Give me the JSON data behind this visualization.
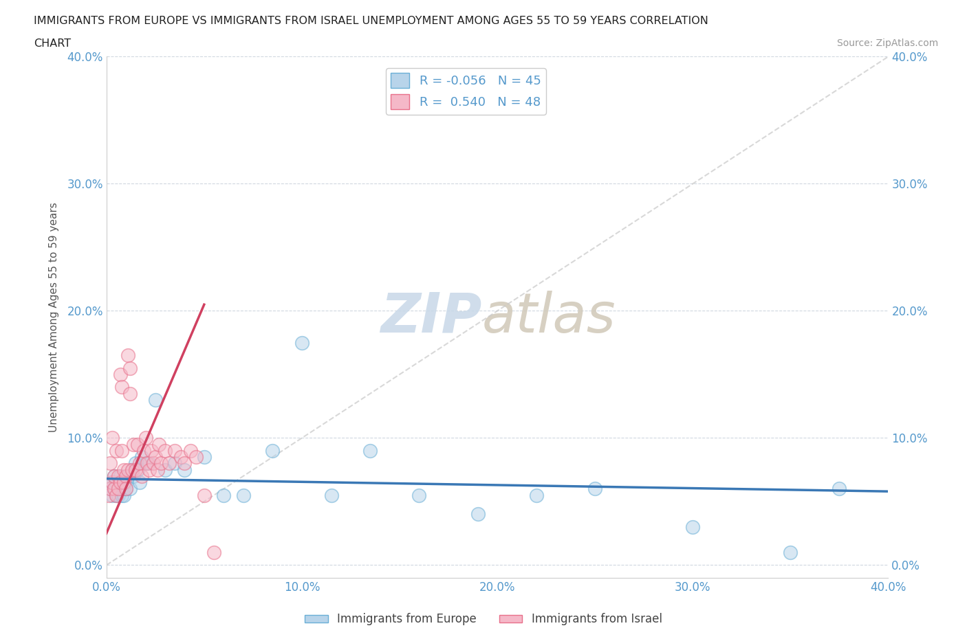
{
  "title_line1": "IMMIGRANTS FROM EUROPE VS IMMIGRANTS FROM ISRAEL UNEMPLOYMENT AMONG AGES 55 TO 59 YEARS CORRELATION",
  "title_line2": "CHART",
  "source": "Source: ZipAtlas.com",
  "ylabel": "Unemployment Among Ages 55 to 59 years",
  "xlim": [
    0.0,
    0.4
  ],
  "ylim": [
    -0.01,
    0.4
  ],
  "yticks": [
    0.0,
    0.1,
    0.2,
    0.3,
    0.4
  ],
  "xticks": [
    0.0,
    0.1,
    0.2,
    0.3,
    0.4
  ],
  "legend_r_europe": "-0.056",
  "legend_n_europe": "45",
  "legend_r_israel": "0.540",
  "legend_n_israel": "48",
  "color_europe_fill": "#b8d4ea",
  "color_israel_fill": "#f5b8c8",
  "color_europe_edge": "#6aafd6",
  "color_israel_edge": "#e8708a",
  "color_europe_line": "#3a78b5",
  "color_israel_line": "#d04060",
  "color_diag": "#c8c8c8",
  "watermark_zip": "ZIP",
  "watermark_atlas": "atlas",
  "europe_x": [
    0.002,
    0.003,
    0.003,
    0.004,
    0.004,
    0.005,
    0.005,
    0.006,
    0.006,
    0.007,
    0.007,
    0.008,
    0.008,
    0.009,
    0.009,
    0.01,
    0.01,
    0.011,
    0.012,
    0.013,
    0.014,
    0.015,
    0.016,
    0.017,
    0.018,
    0.02,
    0.022,
    0.025,
    0.03,
    0.035,
    0.04,
    0.05,
    0.06,
    0.07,
    0.085,
    0.1,
    0.115,
    0.135,
    0.16,
    0.19,
    0.22,
    0.25,
    0.3,
    0.35,
    0.375
  ],
  "europe_y": [
    0.06,
    0.055,
    0.065,
    0.06,
    0.07,
    0.055,
    0.065,
    0.06,
    0.055,
    0.06,
    0.07,
    0.055,
    0.065,
    0.06,
    0.055,
    0.065,
    0.06,
    0.07,
    0.06,
    0.075,
    0.07,
    0.08,
    0.075,
    0.065,
    0.085,
    0.08,
    0.08,
    0.13,
    0.075,
    0.08,
    0.075,
    0.085,
    0.055,
    0.055,
    0.09,
    0.175,
    0.055,
    0.09,
    0.055,
    0.04,
    0.055,
    0.06,
    0.03,
    0.01,
    0.06
  ],
  "israel_x": [
    0.001,
    0.002,
    0.002,
    0.003,
    0.003,
    0.004,
    0.004,
    0.005,
    0.005,
    0.006,
    0.006,
    0.007,
    0.007,
    0.008,
    0.008,
    0.009,
    0.009,
    0.01,
    0.01,
    0.011,
    0.011,
    0.012,
    0.012,
    0.013,
    0.014,
    0.015,
    0.016,
    0.017,
    0.018,
    0.019,
    0.02,
    0.021,
    0.022,
    0.023,
    0.024,
    0.025,
    0.026,
    0.027,
    0.028,
    0.03,
    0.032,
    0.035,
    0.038,
    0.04,
    0.043,
    0.046,
    0.05,
    0.055
  ],
  "israel_y": [
    0.055,
    0.06,
    0.08,
    0.065,
    0.1,
    0.06,
    0.07,
    0.055,
    0.09,
    0.06,
    0.07,
    0.065,
    0.15,
    0.14,
    0.09,
    0.065,
    0.075,
    0.07,
    0.06,
    0.075,
    0.165,
    0.155,
    0.135,
    0.075,
    0.095,
    0.075,
    0.095,
    0.08,
    0.07,
    0.09,
    0.1,
    0.08,
    0.075,
    0.09,
    0.08,
    0.085,
    0.075,
    0.095,
    0.08,
    0.09,
    0.08,
    0.09,
    0.085,
    0.08,
    0.09,
    0.085,
    0.055,
    0.01
  ],
  "israel_trendline_x": [
    0.0,
    0.05
  ],
  "israel_trendline_y": [
    0.025,
    0.205
  ],
  "europe_trendline_x": [
    0.0,
    0.4
  ],
  "europe_trendline_y": [
    0.068,
    0.058
  ]
}
